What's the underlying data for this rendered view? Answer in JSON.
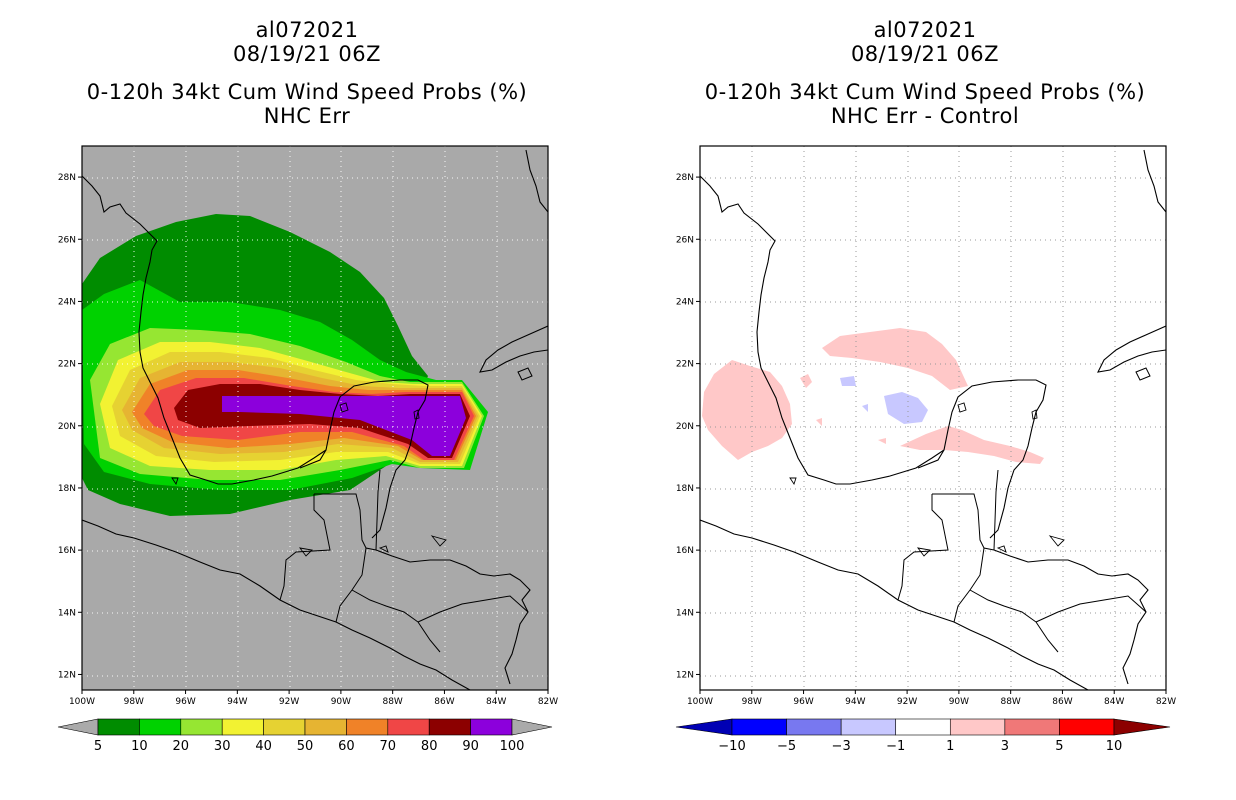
{
  "panels": [
    {
      "id": "left",
      "storm_id": "al072021",
      "datetime": "08/19/21 06Z",
      "product": "0-120h 34kt Cum Wind Speed Probs (%)",
      "subtitle": "NHC Err",
      "map_background": "#a9a9a9",
      "colorbar": {
        "labels": [
          "5",
          "10",
          "20",
          "30",
          "40",
          "50",
          "60",
          "70",
          "80",
          "90",
          "100"
        ],
        "colors": [
          "#008c00",
          "#00d200",
          "#96e632",
          "#f2f232",
          "#e6d232",
          "#e6b432",
          "#f08228",
          "#f04646",
          "#8c0000",
          "#8c00dc"
        ],
        "end_arrows": "#aaaaaa"
      }
    },
    {
      "id": "right",
      "storm_id": "al072021",
      "datetime": "08/19/21 06Z",
      "product": "0-120h 34kt Cum Wind Speed Probs (%)",
      "subtitle": "NHC Err - Control",
      "map_background": "#ffffff",
      "colorbar": {
        "labels": [
          "-10",
          "-5",
          "-3",
          "-1",
          "1",
          "3",
          "5",
          "10"
        ],
        "colors": [
          "#0000ff",
          "#7878f0",
          "#c8c8ff",
          "#ffffff",
          "#ffc8c8",
          "#f07878",
          "#ff0000"
        ],
        "arrow_low": "#0000b4",
        "arrow_high": "#8c0000"
      }
    }
  ],
  "axes": {
    "lat_labels": [
      "28N",
      "26N",
      "24N",
      "22N",
      "20N",
      "18N",
      "16N",
      "14N",
      "12N"
    ],
    "lon_labels": [
      "100W",
      "98W",
      "96W",
      "94W",
      "92W",
      "90W",
      "88W",
      "86W",
      "84W",
      "82W"
    ],
    "lat_range": [
      11.5,
      29
    ],
    "lon_range": [
      -100,
      -82
    ]
  },
  "probability_bands": [
    "5",
    "10",
    "20",
    "30",
    "40",
    "50",
    "60",
    "70",
    "80",
    "90",
    "100"
  ]
}
